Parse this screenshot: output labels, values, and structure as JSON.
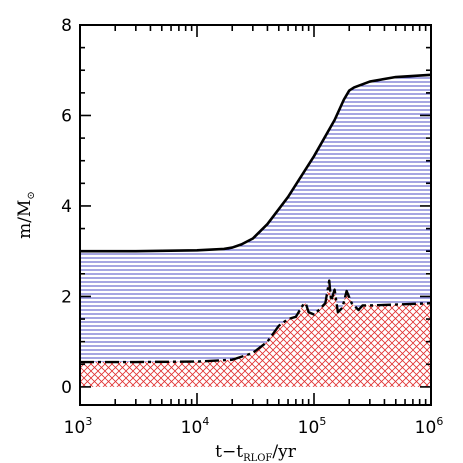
{
  "chart_data": {
    "type": "area",
    "title": "",
    "x_scale": "log",
    "xlim": [
      1000,
      1000000
    ],
    "ylim": [
      -0.4,
      8
    ],
    "x_ticks": [
      {
        "base": "10",
        "exp": "3",
        "value": 1000
      },
      {
        "base": "10",
        "exp": "4",
        "value": 10000
      },
      {
        "base": "10",
        "exp": "5",
        "value": 100000
      },
      {
        "base": "10",
        "exp": "6",
        "value": 1000000
      }
    ],
    "y_ticks": [
      "0",
      "2",
      "4",
      "6",
      "8"
    ],
    "xlabel": {
      "main": "t−t",
      "sub": "RLOF",
      "tail": "/yr"
    },
    "ylabel": {
      "main": "m/M",
      "sub": "⊙"
    },
    "colors": {
      "envelope": "#3a3ac0",
      "core": "#e03030",
      "line": "#000000"
    },
    "series": [
      {
        "style": "solid",
        "fill": "horizontal-hatch-blue",
        "x": [
          1000,
          3000,
          10000,
          17000,
          20000,
          24000,
          30000,
          40000,
          60000,
          100000,
          150000,
          180000,
          200000,
          220000,
          300000,
          500000,
          1000000
        ],
        "y": [
          3.0,
          3.0,
          3.02,
          3.05,
          3.08,
          3.15,
          3.28,
          3.6,
          4.2,
          5.1,
          5.9,
          6.35,
          6.55,
          6.62,
          6.75,
          6.85,
          6.9
        ]
      },
      {
        "style": "dashed",
        "fill": "crosshatch-red",
        "x": [
          1000,
          3000,
          10000,
          20000,
          30000,
          40000,
          50000,
          60000,
          70000,
          80000,
          85000,
          90000,
          100000,
          110000,
          125000,
          135000,
          140000,
          150000,
          160000,
          175000,
          190000,
          210000,
          240000,
          260000,
          300000,
          500000,
          1000000
        ],
        "y": [
          0.55,
          0.55,
          0.56,
          0.6,
          0.75,
          1.0,
          1.35,
          1.5,
          1.55,
          1.8,
          1.85,
          1.65,
          1.6,
          1.7,
          1.85,
          2.35,
          1.9,
          2.15,
          1.65,
          1.75,
          2.12,
          1.85,
          1.7,
          1.8,
          1.8,
          1.82,
          1.85
        ]
      }
    ]
  }
}
